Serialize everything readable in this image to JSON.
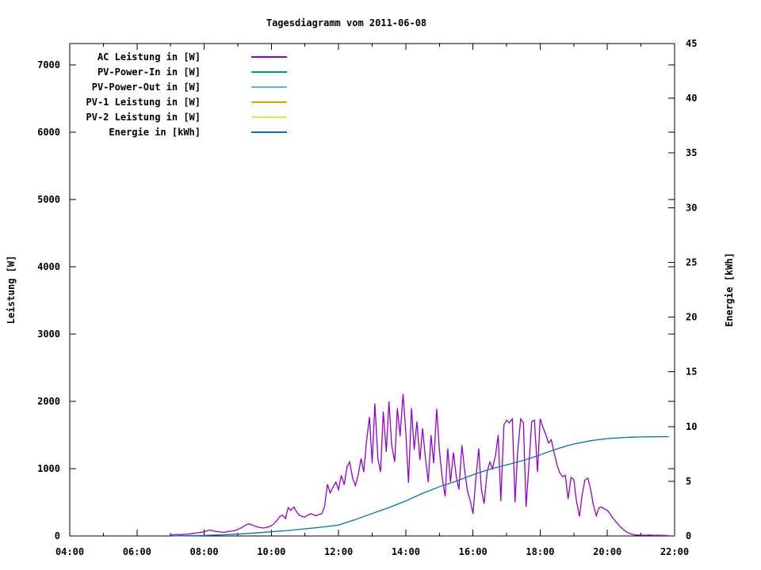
{
  "page": {
    "background_color": "#ffffff",
    "text_color": "#000000"
  },
  "chart_data": {
    "type": "line",
    "title": "Tagesdiagramm vom 2011-06-08",
    "ylabel_left": "Leistung [W]",
    "ylabel_right": "Energie [kWh]",
    "grid": false,
    "legend_position": "top-left-inside",
    "x_axis": {
      "unit": "time-of-day",
      "start_hour": 4,
      "end_hour": 22,
      "major_ticks": [
        {
          "hour": 4,
          "label": "04:00"
        },
        {
          "hour": 6,
          "label": "06:00"
        },
        {
          "hour": 8,
          "label": "08:00"
        },
        {
          "hour": 10,
          "label": "10:00"
        },
        {
          "hour": 12,
          "label": "12:00"
        },
        {
          "hour": 14,
          "label": "14:00"
        },
        {
          "hour": 16,
          "label": "16:00"
        },
        {
          "hour": 18,
          "label": "18:00"
        },
        {
          "hour": 20,
          "label": "20:00"
        },
        {
          "hour": 22,
          "label": "22:00"
        }
      ],
      "minor_tick_hours": [
        5,
        7,
        9,
        11,
        13,
        15,
        17,
        19,
        21
      ]
    },
    "y_left": {
      "min": 0,
      "axis_top_value": 7318,
      "ticks": [
        {
          "value": 0,
          "label": "0"
        },
        {
          "value": 1000,
          "label": "1000"
        },
        {
          "value": 2000,
          "label": "2000"
        },
        {
          "value": 3000,
          "label": "3000"
        },
        {
          "value": 4000,
          "label": "4000"
        },
        {
          "value": 5000,
          "label": "5000"
        },
        {
          "value": 6000,
          "label": "6000"
        },
        {
          "value": 7000,
          "label": "7000"
        }
      ]
    },
    "y_right": {
      "min": 0,
      "axis_top_value": 45,
      "ticks": [
        {
          "value": 0,
          "label": "0"
        },
        {
          "value": 5,
          "label": "5"
        },
        {
          "value": 10,
          "label": "10"
        },
        {
          "value": 15,
          "label": "15"
        },
        {
          "value": 20,
          "label": "20"
        },
        {
          "value": 25,
          "label": "25"
        },
        {
          "value": 30,
          "label": "30"
        },
        {
          "value": 35,
          "label": "35"
        },
        {
          "value": 40,
          "label": "40"
        },
        {
          "value": 45,
          "label": "45"
        }
      ]
    },
    "legend": [
      {
        "label": "AC Leistung in [W]",
        "color": "#9400D3"
      },
      {
        "label": "PV-Power-In in [W]",
        "color": "#009E73"
      },
      {
        "label": "PV-Power-Out in [W]",
        "color": "#56B4E9"
      },
      {
        "label": "PV-1 Leistung in [W]",
        "color": "#E69F00"
      },
      {
        "label": "PV-2 Leistung in [W]",
        "color": "#F0E442"
      },
      {
        "label": "Energie in [kWh]",
        "color": "#0072B2"
      }
    ],
    "series": [
      {
        "name": "AC Leistung in [W]",
        "color": "#9400D3",
        "axis": "left",
        "points": [
          [
            7.0,
            15
          ],
          [
            7.08,
            18
          ],
          [
            7.17,
            22
          ],
          [
            7.25,
            18
          ],
          [
            7.33,
            20
          ],
          [
            7.42,
            25
          ],
          [
            7.5,
            28
          ],
          [
            7.58,
            32
          ],
          [
            7.67,
            38
          ],
          [
            7.75,
            42
          ],
          [
            7.83,
            48
          ],
          [
            7.92,
            55
          ],
          [
            8.0,
            62
          ],
          [
            8.08,
            75
          ],
          [
            8.17,
            88
          ],
          [
            8.25,
            78
          ],
          [
            8.33,
            70
          ],
          [
            8.42,
            62
          ],
          [
            8.5,
            58
          ],
          [
            8.58,
            55
          ],
          [
            8.67,
            60
          ],
          [
            8.75,
            68
          ],
          [
            8.83,
            72
          ],
          [
            8.92,
            80
          ],
          [
            9.0,
            95
          ],
          [
            9.08,
            115
          ],
          [
            9.17,
            140
          ],
          [
            9.25,
            165
          ],
          [
            9.33,
            180
          ],
          [
            9.42,
            165
          ],
          [
            9.5,
            150
          ],
          [
            9.58,
            135
          ],
          [
            9.67,
            125
          ],
          [
            9.75,
            118
          ],
          [
            9.83,
            125
          ],
          [
            9.92,
            135
          ],
          [
            10.0,
            150
          ],
          [
            10.08,
            185
          ],
          [
            10.17,
            230
          ],
          [
            10.25,
            290
          ],
          [
            10.33,
            310
          ],
          [
            10.42,
            260
          ],
          [
            10.5,
            420
          ],
          [
            10.58,
            380
          ],
          [
            10.67,
            430
          ],
          [
            10.75,
            360
          ],
          [
            10.83,
            310
          ],
          [
            10.92,
            290
          ],
          [
            11.0,
            280
          ],
          [
            11.08,
            310
          ],
          [
            11.17,
            330
          ],
          [
            11.25,
            315
          ],
          [
            11.33,
            300
          ],
          [
            11.42,
            320
          ],
          [
            11.5,
            330
          ],
          [
            11.58,
            430
          ],
          [
            11.67,
            770
          ],
          [
            11.75,
            640
          ],
          [
            11.83,
            720
          ],
          [
            11.92,
            800
          ],
          [
            12.0,
            690
          ],
          [
            12.08,
            900
          ],
          [
            12.17,
            760
          ],
          [
            12.25,
            1030
          ],
          [
            12.33,
            1100
          ],
          [
            12.42,
            860
          ],
          [
            12.5,
            750
          ],
          [
            12.58,
            900
          ],
          [
            12.67,
            1150
          ],
          [
            12.75,
            950
          ],
          [
            12.83,
            1400
          ],
          [
            12.92,
            1770
          ],
          [
            13.0,
            1080
          ],
          [
            13.08,
            1970
          ],
          [
            13.17,
            1150
          ],
          [
            13.25,
            950
          ],
          [
            13.33,
            1850
          ],
          [
            13.42,
            1250
          ],
          [
            13.5,
            2000
          ],
          [
            13.58,
            1350
          ],
          [
            13.67,
            1100
          ],
          [
            13.75,
            1900
          ],
          [
            13.83,
            1480
          ],
          [
            13.92,
            2110
          ],
          [
            14.0,
            1550
          ],
          [
            14.08,
            790
          ],
          [
            14.17,
            1900
          ],
          [
            14.25,
            1280
          ],
          [
            14.33,
            1700
          ],
          [
            14.42,
            1130
          ],
          [
            14.5,
            1600
          ],
          [
            14.58,
            1180
          ],
          [
            14.67,
            800
          ],
          [
            14.75,
            1500
          ],
          [
            14.83,
            1080
          ],
          [
            14.92,
            1890
          ],
          [
            15.0,
            1280
          ],
          [
            15.08,
            880
          ],
          [
            15.17,
            590
          ],
          [
            15.25,
            1300
          ],
          [
            15.33,
            800
          ],
          [
            15.42,
            1240
          ],
          [
            15.5,
            890
          ],
          [
            15.58,
            690
          ],
          [
            15.67,
            1350
          ],
          [
            15.75,
            980
          ],
          [
            15.83,
            680
          ],
          [
            15.92,
            520
          ],
          [
            16.0,
            330
          ],
          [
            16.08,
            820
          ],
          [
            16.17,
            1300
          ],
          [
            16.25,
            690
          ],
          [
            16.33,
            480
          ],
          [
            16.42,
            950
          ],
          [
            16.5,
            1100
          ],
          [
            16.58,
            1000
          ],
          [
            16.67,
            1200
          ],
          [
            16.75,
            1500
          ],
          [
            16.83,
            520
          ],
          [
            16.92,
            1650
          ],
          [
            17.0,
            1720
          ],
          [
            17.08,
            1680
          ],
          [
            17.17,
            1740
          ],
          [
            17.25,
            500
          ],
          [
            17.33,
            1250
          ],
          [
            17.42,
            1740
          ],
          [
            17.5,
            1680
          ],
          [
            17.58,
            430
          ],
          [
            17.67,
            1100
          ],
          [
            17.75,
            1700
          ],
          [
            17.83,
            1720
          ],
          [
            17.92,
            950
          ],
          [
            18.0,
            1740
          ],
          [
            18.08,
            1620
          ],
          [
            18.17,
            1500
          ],
          [
            18.25,
            1380
          ],
          [
            18.33,
            1430
          ],
          [
            18.42,
            1230
          ],
          [
            18.5,
            1060
          ],
          [
            18.58,
            940
          ],
          [
            18.67,
            880
          ],
          [
            18.75,
            900
          ],
          [
            18.83,
            550
          ],
          [
            18.92,
            870
          ],
          [
            19.0,
            840
          ],
          [
            19.08,
            520
          ],
          [
            19.17,
            290
          ],
          [
            19.25,
            610
          ],
          [
            19.33,
            830
          ],
          [
            19.42,
            860
          ],
          [
            19.5,
            700
          ],
          [
            19.58,
            470
          ],
          [
            19.67,
            300
          ],
          [
            19.75,
            420
          ],
          [
            19.83,
            430
          ],
          [
            19.92,
            400
          ],
          [
            20.0,
            380
          ],
          [
            20.08,
            330
          ],
          [
            20.17,
            260
          ],
          [
            20.25,
            215
          ],
          [
            20.33,
            165
          ],
          [
            20.42,
            120
          ],
          [
            20.5,
            85
          ],
          [
            20.58,
            55
          ],
          [
            20.67,
            35
          ],
          [
            20.75,
            22
          ],
          [
            20.83,
            15
          ],
          [
            21.0,
            12
          ],
          [
            21.17,
            10
          ],
          [
            21.25,
            16
          ],
          [
            21.33,
            10
          ],
          [
            21.5,
            9
          ],
          [
            21.67,
            8
          ],
          [
            21.83,
            5
          ]
        ]
      },
      {
        "name": "PV-Power-In in [W]",
        "color": "#009E73",
        "axis": "left",
        "points": []
      },
      {
        "name": "PV-Power-Out in [W]",
        "color": "#56B4E9",
        "axis": "left",
        "points": []
      },
      {
        "name": "PV-1 Leistung in [W]",
        "color": "#E69F00",
        "axis": "left",
        "points": []
      },
      {
        "name": "PV-2 Leistung in [W]",
        "color": "#F0E442",
        "axis": "left",
        "points": []
      },
      {
        "name": "Energie in [kWh]",
        "color": "#0072B2",
        "axis": "right",
        "points": [
          [
            7.0,
            0
          ],
          [
            7.5,
            0.02
          ],
          [
            8.0,
            0.05
          ],
          [
            8.5,
            0.1
          ],
          [
            9.0,
            0.17
          ],
          [
            9.5,
            0.27
          ],
          [
            10.0,
            0.38
          ],
          [
            10.5,
            0.5
          ],
          [
            11.0,
            0.65
          ],
          [
            11.5,
            0.8
          ],
          [
            12.0,
            1.0
          ],
          [
            12.5,
            1.5
          ],
          [
            13.0,
            2.05
          ],
          [
            13.5,
            2.6
          ],
          [
            14.0,
            3.2
          ],
          [
            14.5,
            3.9
          ],
          [
            15.0,
            4.5
          ],
          [
            15.5,
            5.0
          ],
          [
            16.0,
            5.6
          ],
          [
            16.5,
            6.1
          ],
          [
            17.0,
            6.5
          ],
          [
            17.5,
            6.9
          ],
          [
            18.0,
            7.4
          ],
          [
            18.25,
            7.7
          ],
          [
            18.5,
            7.95
          ],
          [
            18.75,
            8.2
          ],
          [
            19.0,
            8.4
          ],
          [
            19.25,
            8.55
          ],
          [
            19.5,
            8.7
          ],
          [
            19.75,
            8.8
          ],
          [
            20.0,
            8.9
          ],
          [
            20.25,
            8.95
          ],
          [
            20.5,
            9.0
          ],
          [
            20.75,
            9.03
          ],
          [
            21.0,
            9.05
          ],
          [
            21.25,
            9.06
          ],
          [
            21.5,
            9.07
          ],
          [
            21.83,
            9.07
          ]
        ]
      }
    ]
  }
}
